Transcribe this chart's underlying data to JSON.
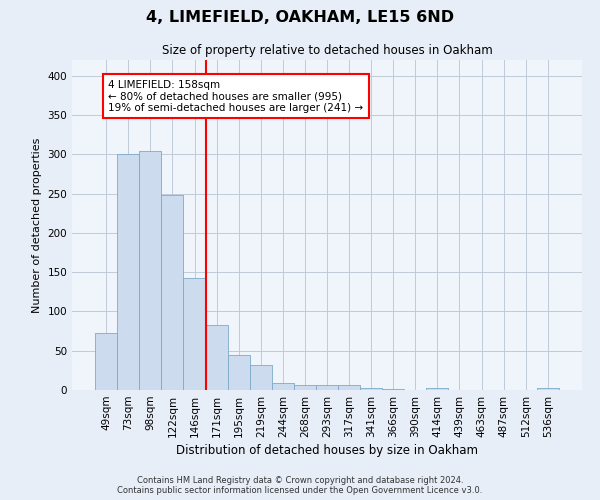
{
  "title": "4, LIMEFIELD, OAKHAM, LE15 6ND",
  "subtitle": "Size of property relative to detached houses in Oakham",
  "xlabel": "Distribution of detached houses by size in Oakham",
  "ylabel": "Number of detached properties",
  "bar_labels": [
    "49sqm",
    "73sqm",
    "98sqm",
    "122sqm",
    "146sqm",
    "171sqm",
    "195sqm",
    "219sqm",
    "244sqm",
    "268sqm",
    "293sqm",
    "317sqm",
    "341sqm",
    "366sqm",
    "390sqm",
    "414sqm",
    "439sqm",
    "463sqm",
    "487sqm",
    "512sqm",
    "536sqm"
  ],
  "bar_values": [
    72,
    300,
    304,
    248,
    143,
    83,
    44,
    32,
    9,
    6,
    6,
    6,
    3,
    1,
    0,
    3,
    0,
    0,
    0,
    0,
    3
  ],
  "bar_color": "#ccdcee",
  "bar_edge_color": "#7aaac8",
  "vline_x": 4.5,
  "vline_color": "red",
  "annotation_text": "4 LIMEFIELD: 158sqm\n← 80% of detached houses are smaller (995)\n19% of semi-detached houses are larger (241) →",
  "ylim": [
    0,
    420
  ],
  "yticks": [
    0,
    50,
    100,
    150,
    200,
    250,
    300,
    350,
    400
  ],
  "footer_line1": "Contains HM Land Registry data © Crown copyright and database right 2024.",
  "footer_line2": "Contains public sector information licensed under the Open Government Licence v3.0.",
  "bg_color": "#e8eef8",
  "plot_bg_color": "#f0f5fb",
  "grid_color": "#c0cad8"
}
